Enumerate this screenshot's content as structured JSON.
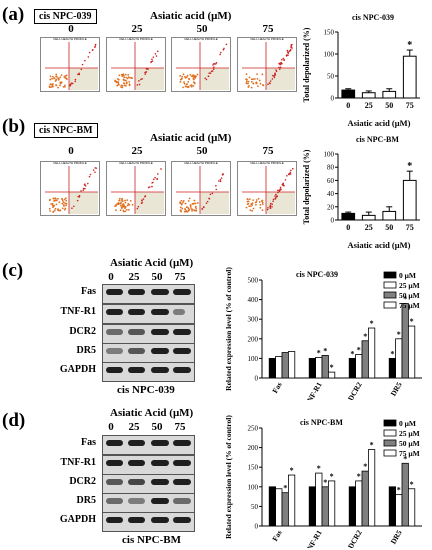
{
  "panel_a": {
    "label": "(a)",
    "cell_line": "cis NPC-039",
    "treatment_title": "Asiatic acid (μM)",
    "doses": [
      "0",
      "25",
      "50",
      "75"
    ],
    "flow_header": "CELL HEALTH PROFILE"
  },
  "panel_b": {
    "label": "(b)",
    "cell_line": "cis NPC-BM",
    "treatment_title": "Asiatic acid (μM)",
    "doses": [
      "0",
      "25",
      "50",
      "75"
    ],
    "flow_header": "CELL HEALTH PROFILE"
  },
  "panel_c": {
    "label": "(c)",
    "treatment_title": "Asiatic Acid (μM)",
    "doses": [
      "0",
      "25",
      "50",
      "75"
    ],
    "proteins": [
      "Fas",
      "TNF-R1",
      "DCR2",
      "DR5",
      "GAPDH"
    ],
    "cell_line": "cis NPC-039"
  },
  "panel_d": {
    "label": "(d)",
    "treatment_title": "Asiatic Acid (μM)",
    "doses": [
      "0",
      "25",
      "50",
      "75"
    ],
    "proteins": [
      "Fas",
      "TNF-R1",
      "DCR2",
      "DR5",
      "GAPDH"
    ],
    "cell_line": "cis NPC-BM"
  },
  "colors": {
    "bar_0": "#000000",
    "bar_25": "#ffffff",
    "bar_50": "#808080",
    "bar_75": "#ffffff",
    "flow_dots": "#e07020",
    "flow_dots_red": "#cc2222"
  },
  "chart_data": [
    {
      "id": "a",
      "type": "bar",
      "title": "cis NPC-039",
      "xlabel": "Asiatic acid (μM)",
      "ylabel": "Total depolarized (%)",
      "categories": [
        "0",
        "25",
        "50",
        "75"
      ],
      "values": [
        18,
        12,
        15,
        95
      ],
      "errors": [
        3,
        4,
        6,
        14
      ],
      "significant": [
        false,
        false,
        false,
        true
      ],
      "sig_marker": "*",
      "ylim": [
        0,
        150
      ],
      "yticks": [
        0,
        50,
        100,
        150
      ]
    },
    {
      "id": "b",
      "type": "bar",
      "title": "cis NPC-BM",
      "xlabel": "Asiatic acid (μM)",
      "ylabel": "Total depolarized (%)",
      "categories": [
        "0",
        "25",
        "50",
        "75"
      ],
      "values": [
        10,
        7,
        13,
        60
      ],
      "errors": [
        2,
        5,
        7,
        14
      ],
      "significant": [
        false,
        false,
        false,
        true
      ],
      "sig_marker": "*",
      "ylim": [
        0,
        100
      ],
      "yticks": [
        0,
        20,
        40,
        60,
        80,
        100
      ]
    },
    {
      "id": "c",
      "type": "bar",
      "title": "cis NPC-039",
      "ylabel": "Related expression level (% of control)",
      "categories": [
        "Fas",
        "TNF-R1",
        "DCR2",
        "DR5"
      ],
      "series": [
        {
          "name": "0 μM",
          "values": [
            100,
            100,
            100,
            100
          ]
        },
        {
          "name": "25 μM",
          "values": [
            110,
            105,
            120,
            200
          ]
        },
        {
          "name": "50 μM",
          "values": [
            130,
            115,
            190,
            380
          ]
        },
        {
          "name": "75 μM",
          "values": [
            135,
            30,
            255,
            265
          ]
        }
      ],
      "significant": [
        [
          false,
          false,
          true,
          true
        ],
        [
          false,
          true,
          true,
          true
        ],
        [
          false,
          true,
          true,
          true
        ],
        [
          false,
          true,
          true,
          true
        ]
      ],
      "sig_marker": "*",
      "ylim": [
        0,
        500
      ],
      "yticks": [
        0,
        100,
        200,
        300,
        400,
        500
      ],
      "legend": "top-right"
    },
    {
      "id": "d",
      "type": "bar",
      "title": "cis NPC-BM",
      "ylabel": "Related expression level (% of control)",
      "categories": [
        "Fas",
        "TNF-R1",
        "DCR2",
        "DR5"
      ],
      "series": [
        {
          "name": "0 μM",
          "values": [
            100,
            100,
            100,
            100
          ]
        },
        {
          "name": "25 μM",
          "values": [
            95,
            135,
            115,
            80
          ]
        },
        {
          "name": "50 μM",
          "values": [
            85,
            100,
            140,
            160
          ]
        },
        {
          "name": "75 μM",
          "values": [
            130,
            115,
            195,
            95
          ]
        }
      ],
      "significant": [
        [
          false,
          false,
          false,
          false
        ],
        [
          false,
          true,
          true,
          true
        ],
        [
          true,
          true,
          true,
          true
        ],
        [
          true,
          true,
          true,
          true
        ]
      ],
      "sig_marker": "*",
      "ylim": [
        0,
        250
      ],
      "yticks": [
        0,
        50,
        100,
        150,
        200,
        250
      ],
      "legend": "top-right"
    }
  ]
}
